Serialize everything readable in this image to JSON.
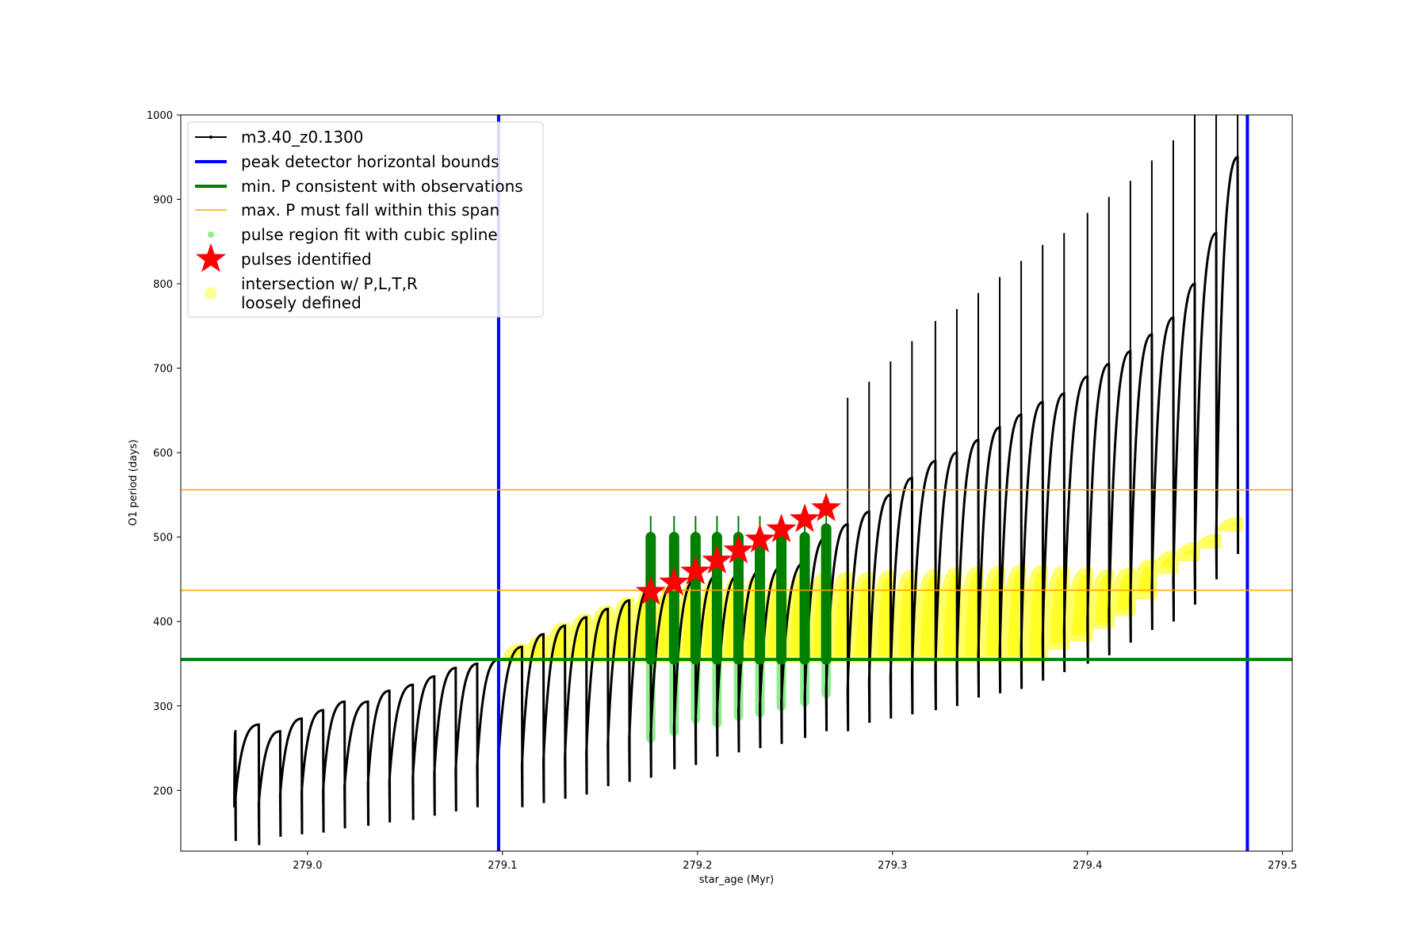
{
  "chart_data": {
    "type": "scatter",
    "title": "",
    "xlabel": "star_age (Myr)",
    "ylabel": "O1 period (days)",
    "xlim": [
      278.935,
      279.505
    ],
    "ylim": [
      128,
      1000
    ],
    "xticks": [
      279.0,
      279.1,
      279.2,
      279.3,
      279.4,
      279.5
    ],
    "yticks": [
      200,
      300,
      400,
      500,
      600,
      700,
      800,
      900,
      1000
    ],
    "xtick_labels": [
      "279.0",
      "279.1",
      "279.2",
      "279.3",
      "279.4",
      "279.5"
    ],
    "ytick_labels": [
      "200",
      "300",
      "400",
      "500",
      "600",
      "700",
      "800",
      "900",
      "1000"
    ],
    "grid": false,
    "legend_position": "top-left",
    "legend": [
      {
        "label": "m3.40_z0.1300",
        "kind": "line-marker",
        "color": "#000000"
      },
      {
        "label": "peak detector horizontal bounds",
        "kind": "line",
        "color": "#0000ff"
      },
      {
        "label": "min. P consistent with observations",
        "kind": "line",
        "color": "#008000"
      },
      {
        "label": "max. P must fall within this span",
        "kind": "thin-line",
        "color": "#ffa500"
      },
      {
        "label": "pulse region fit with cubic spline",
        "kind": "dot",
        "color": "#90ee90"
      },
      {
        "label": "pulses identified",
        "kind": "star",
        "color": "#ff0000"
      },
      {
        "label": "intersection w/ P,L,T,R\nloosely defined",
        "kind": "big-dot",
        "color": "#ffff99"
      }
    ],
    "reference_lines": {
      "peak_detector_bounds_x": [
        279.098,
        279.482
      ],
      "min_period_y": 355,
      "max_period_span_y": [
        437,
        556
      ]
    },
    "series": [
      {
        "name": "m3.40_z0.1300",
        "kind": "pulse-track",
        "pulse_ages": [
          278.963,
          278.975,
          278.986,
          278.997,
          279.008,
          279.019,
          279.031,
          279.042,
          279.054,
          279.065,
          279.076,
          279.087,
          279.098,
          279.11,
          279.121,
          279.132,
          279.143,
          279.154,
          279.165,
          279.176,
          279.188,
          279.199,
          279.21,
          279.221,
          279.232,
          279.243,
          279.255,
          279.266,
          279.277,
          279.288,
          279.299,
          279.31,
          279.322,
          279.333,
          279.344,
          279.355,
          279.366,
          279.377,
          279.388,
          279.4,
          279.411,
          279.422,
          279.433,
          279.444,
          279.455,
          279.466,
          279.477
        ],
        "pulse_period_min": [
          140,
          135,
          145,
          148,
          150,
          155,
          158,
          162,
          165,
          170,
          175,
          180,
          190,
          180,
          185,
          190,
          195,
          205,
          210,
          215,
          225,
          230,
          240,
          245,
          250,
          255,
          262,
          270,
          270,
          280,
          285,
          290,
          295,
          300,
          310,
          315,
          320,
          330,
          340,
          350,
          360,
          375,
          390,
          400,
          420,
          450,
          480
        ],
        "pulse_period_peak": [
          270,
          278,
          270,
          285,
          295,
          305,
          305,
          318,
          325,
          335,
          345,
          350,
          355,
          370,
          385,
          395,
          405,
          415,
          425,
          440,
          445,
          450,
          455,
          455,
          460,
          465,
          470,
          500,
          515,
          530,
          550,
          570,
          590,
          600,
          615,
          630,
          645,
          660,
          670,
          690,
          705,
          720,
          740,
          760,
          800,
          860,
          950
        ]
      },
      {
        "name": "pulse region fit with cubic spline",
        "kind": "vertical-bands",
        "ages": [
          279.176,
          279.188,
          279.199,
          279.21,
          279.221,
          279.232,
          279.243,
          279.255,
          279.266
        ],
        "y_low": [
          262,
          270,
          285,
          280,
          288,
          292,
          300,
          305,
          315
        ],
        "y_high": [
          500,
          500,
          500,
          500,
          500,
          500,
          500,
          500,
          510
        ]
      },
      {
        "name": "pulses identified",
        "kind": "markers",
        "x": [
          279.176,
          279.188,
          279.199,
          279.21,
          279.221,
          279.232,
          279.243,
          279.255,
          279.266
        ],
        "y": [
          435,
          446,
          459,
          472,
          484,
          497,
          509,
          521,
          534
        ]
      },
      {
        "name": "intersection w/ P,L,T,R loosely defined",
        "kind": "pulse-blobs",
        "ages": [
          279.11,
          279.121,
          279.132,
          279.143,
          279.154,
          279.165,
          279.176,
          279.188,
          279.199,
          279.21,
          279.221,
          279.232,
          279.243,
          279.255,
          279.266,
          279.277,
          279.288,
          279.299,
          279.31,
          279.322,
          279.333,
          279.344,
          279.355,
          279.366,
          279.377,
          279.388,
          279.4,
          279.411,
          279.422,
          279.433,
          279.444,
          279.455,
          279.466,
          279.477
        ],
        "y_top": [
          370,
          380,
          395,
          405,
          415,
          425,
          435,
          440,
          445,
          448,
          450,
          452,
          453,
          455,
          455,
          455,
          455,
          457,
          457,
          458,
          460,
          461,
          462,
          463,
          463,
          462,
          460,
          458,
          460,
          470,
          480,
          490,
          500,
          520
        ],
        "y_bottom": [
          355,
          355,
          355,
          355,
          355,
          355,
          355,
          355,
          355,
          355,
          355,
          355,
          355,
          355,
          355,
          355,
          355,
          355,
          355,
          355,
          355,
          355,
          355,
          355,
          355,
          370,
          380,
          395,
          410,
          430,
          460,
          475,
          490,
          510
        ]
      }
    ]
  }
}
